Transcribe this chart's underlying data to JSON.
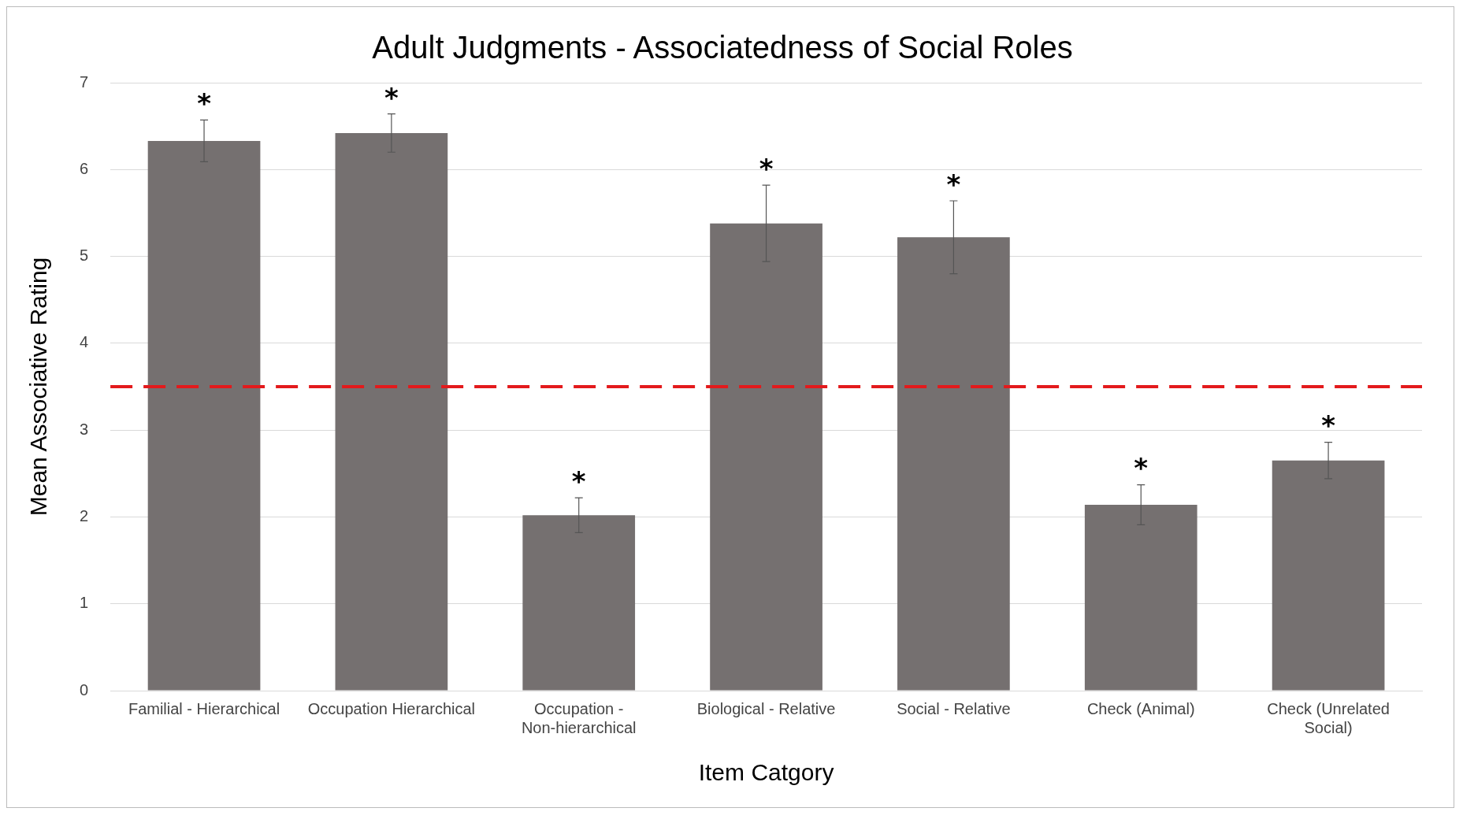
{
  "chart_data": {
    "type": "bar",
    "title": "Adult Judgments - Associatedness of Social Roles",
    "xlabel": "Item Catgory",
    "ylabel": "Mean Associative Rating",
    "categories": [
      "Familial - Hierarchical",
      "Occupation Hierarchical",
      "Occupation - Non-hierarchical",
      "Biological - Relative",
      "Social - Relative",
      "Check (Animal)",
      "Check (Unrelated Social)"
    ],
    "values": [
      6.33,
      6.42,
      2.02,
      5.38,
      5.22,
      2.14,
      2.65
    ],
    "errors": [
      0.24,
      0.22,
      0.2,
      0.44,
      0.42,
      0.23,
      0.21
    ],
    "color": "#757070",
    "ylim": [
      0,
      7
    ],
    "yticks": [
      0,
      1,
      2,
      3,
      4,
      5,
      6,
      7
    ],
    "grid": "y",
    "ref_lines": [
      {
        "axis": "y",
        "value": 3.5,
        "color": "#e31a1c",
        "line_style": "dashed"
      }
    ],
    "annotations": [
      {
        "text": "*",
        "x": "Familial - Hierarchical",
        "y": 6.33
      },
      {
        "text": "*",
        "x": "Occupation Hierarchical",
        "y": 6.42
      },
      {
        "text": "*",
        "x": "Occupation - Non-hierarchical",
        "y": 2.02
      },
      {
        "text": "*",
        "x": "Biological - Relative",
        "y": 5.38
      },
      {
        "text": "*",
        "x": "Social - Relative",
        "y": 5.22
      },
      {
        "text": "*",
        "x": "Check (Animal)",
        "y": 2.14
      },
      {
        "text": "*",
        "x": "Check (Unrelated Social)",
        "y": 2.65
      }
    ]
  }
}
